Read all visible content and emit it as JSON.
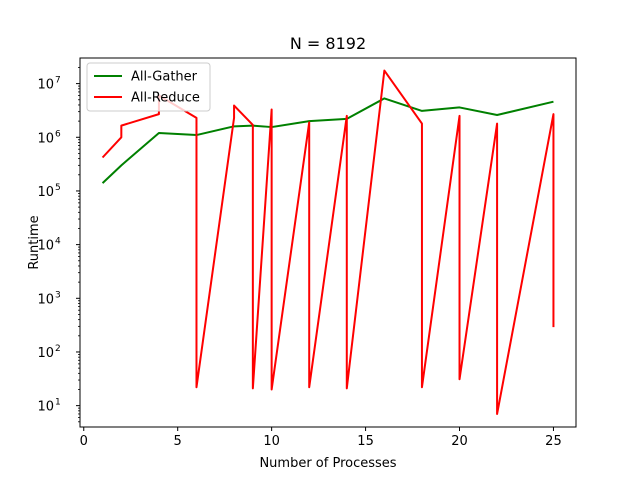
{
  "chart_data": {
    "type": "line",
    "title": "N = 8192",
    "xlabel": "Number of Processes",
    "ylabel": "Runtime",
    "yscale": "log",
    "xlim": [
      -0.2,
      26.2
    ],
    "ylim": [
      4,
      30000000
    ],
    "xticks": [
      {
        "value": 0,
        "label": "0"
      },
      {
        "value": 5,
        "label": "5"
      },
      {
        "value": 10,
        "label": "10"
      },
      {
        "value": 15,
        "label": "15"
      },
      {
        "value": 20,
        "label": "20"
      },
      {
        "value": 25,
        "label": "25"
      }
    ],
    "yticks": [
      {
        "value": 10,
        "base": "10",
        "exp": "1"
      },
      {
        "value": 100,
        "base": "10",
        "exp": "2"
      },
      {
        "value": 1000,
        "base": "10",
        "exp": "3"
      },
      {
        "value": 10000,
        "base": "10",
        "exp": "4"
      },
      {
        "value": 100000,
        "base": "10",
        "exp": "5"
      },
      {
        "value": 1000000,
        "base": "10",
        "exp": "6"
      },
      {
        "value": 10000000,
        "base": "10",
        "exp": "7"
      }
    ],
    "legend": {
      "position": "top-left"
    },
    "grid": false,
    "series": [
      {
        "name": "All-Gather",
        "color": "#008000",
        "points": [
          [
            1,
            140000
          ],
          [
            2,
            300000
          ],
          [
            4,
            1200000
          ],
          [
            6,
            1100000
          ],
          [
            8,
            1600000
          ],
          [
            9,
            1650000
          ],
          [
            10,
            1550000
          ],
          [
            12,
            2000000
          ],
          [
            14,
            2200000
          ],
          [
            16,
            5300000
          ],
          [
            18,
            3100000
          ],
          [
            20,
            3600000
          ],
          [
            22,
            2600000
          ],
          [
            25,
            4600000
          ]
        ]
      },
      {
        "name": "All-Reduce",
        "color": "#ff0000",
        "points": [
          [
            1,
            420000
          ],
          [
            2,
            1000000
          ],
          [
            2,
            1650000
          ],
          [
            4,
            2700000
          ],
          [
            4,
            6000000
          ],
          [
            6,
            2300000
          ],
          [
            6,
            22
          ],
          [
            8,
            2300000
          ],
          [
            8,
            3900000
          ],
          [
            9,
            1700000
          ],
          [
            9,
            21
          ],
          [
            10,
            3300000
          ],
          [
            10,
            20
          ],
          [
            12,
            1900000
          ],
          [
            12,
            22
          ],
          [
            14,
            2500000
          ],
          [
            14,
            21
          ],
          [
            16,
            17500000
          ],
          [
            18,
            1800000
          ],
          [
            18,
            22
          ],
          [
            20,
            2500000
          ],
          [
            20,
            31
          ],
          [
            22,
            1800000
          ],
          [
            22,
            7
          ],
          [
            25,
            2700000
          ],
          [
            25,
            290
          ]
        ]
      }
    ]
  }
}
